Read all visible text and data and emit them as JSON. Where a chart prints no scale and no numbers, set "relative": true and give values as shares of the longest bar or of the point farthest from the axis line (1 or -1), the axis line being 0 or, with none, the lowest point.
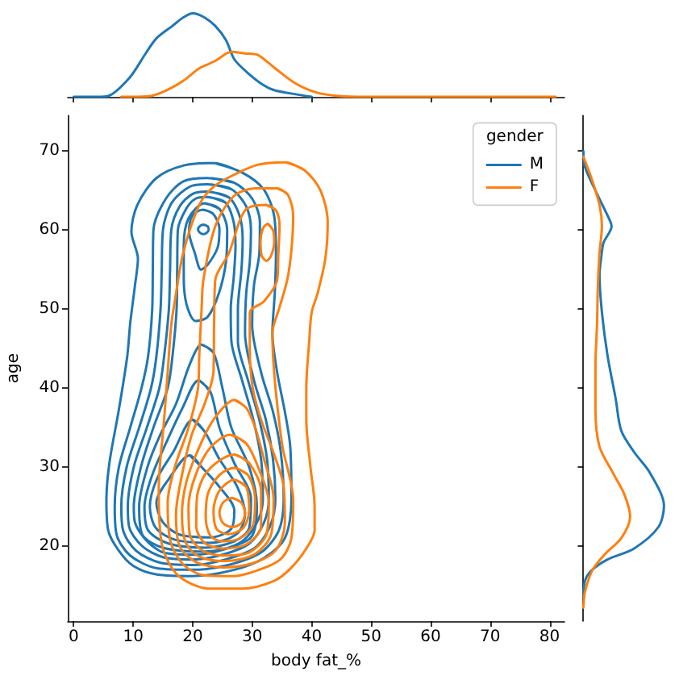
{
  "chart_data": [
    {
      "type": "line",
      "relative": true,
      "xlim": [
        -1,
        82.5
      ],
      "xticks": [
        0,
        10,
        20,
        30,
        40,
        50,
        60,
        70,
        80
      ],
      "tick_labels": false,
      "series": [
        {
          "color": "#1f77b4",
          "x": [
            0,
            4,
            5.8,
            9.4,
            12.1,
            13.9,
            16.6,
            18.4,
            20,
            22,
            23.8,
            25.6,
            27,
            29.2,
            31.9,
            33.7,
            37.3,
            40
          ],
          "values": [
            0,
            0,
            0.01,
            0.23,
            0.52,
            0.7,
            0.85,
            0.95,
            1,
            0.95,
            0.85,
            0.68,
            0.45,
            0.29,
            0.14,
            0.08,
            0.03,
            0
          ]
        },
        {
          "color": "#ff7f0e",
          "x": [
            8,
            9.4,
            13,
            15.7,
            18.4,
            21.1,
            23.8,
            26.5,
            28.8,
            31,
            33.7,
            37.3,
            40.9,
            44.5,
            49,
            60,
            70,
            81
          ],
          "values": [
            0,
            0,
            0.01,
            0.08,
            0.19,
            0.34,
            0.43,
            0.54,
            0.52,
            0.5,
            0.35,
            0.16,
            0.05,
            0.01,
            0,
            0,
            0,
            0
          ]
        }
      ]
    },
    {
      "type": "line",
      "xlabel": "body fat_%",
      "ylabel": "age",
      "legend_title": "gender",
      "legend": "top right",
      "xlim": [
        -1,
        82.5
      ],
      "ylim": [
        10.5,
        74.5
      ],
      "xticks": [
        0,
        10,
        20,
        30,
        40,
        50,
        60,
        70,
        80
      ],
      "yticks": [
        20,
        30,
        40,
        50,
        60,
        70
      ],
      "series": [
        {
          "name": "M",
          "color": "#1f77b4",
          "x": [
            23.6,
            28.3,
            31.9,
            33.7,
            34,
            33.8,
            33.4,
            34.2,
            35.5,
            36.4,
            36.6,
            35.5,
            32,
            27,
            20,
            14,
            10,
            7.5,
            5.8,
            5.5,
            6,
            7.6,
            9,
            9.5,
            10.3,
            10.8,
            9.7,
            10.7,
            13.9,
            18.5,
            23.6,
            28.3
          ],
          "values": [
            68.5,
            67.3,
            65.2,
            61.8,
            57,
            52,
            47,
            42,
            37,
            32.6,
            25.8,
            21,
            18.5,
            17,
            16.2,
            16.4,
            17.5,
            19.5,
            22,
            25.8,
            30.5,
            37.3,
            44,
            48.2,
            53,
            56.4,
            59.8,
            63.2,
            66.6,
            68.2,
            68.5,
            67.3
          ]
        },
        {
          "color": "#1f77b4",
          "x": [
            22.5,
            27,
            30,
            31.3,
            31.2,
            30.3,
            30,
            31.5,
            33.5,
            34.8,
            35.3,
            34.5,
            31.5,
            26,
            20,
            14,
            9.5,
            7.2,
            6.9,
            7.6,
            9.5,
            11.4,
            12.5,
            13.2,
            13.3,
            13.4,
            15.5,
            18.5,
            22.5,
            27
          ],
          "values": [
            66.6,
            66,
            64,
            61,
            57,
            53,
            48,
            42,
            37,
            32,
            26,
            22,
            19.2,
            17.6,
            17,
            17.2,
            18.8,
            21.5,
            25,
            30,
            35,
            40,
            44,
            50,
            55,
            60,
            64,
            66.2,
            66.6,
            66
          ]
        },
        {
          "color": "#1f77b4",
          "x": [
            22.5,
            26.5,
            29,
            29.8,
            29.6,
            29,
            28.8,
            30.3,
            32.3,
            33.5,
            33.9,
            33,
            30.5,
            25.5,
            20,
            14.5,
            10.5,
            8.3,
            8,
            8.9,
            11,
            13,
            13.9,
            14.6,
            14.8,
            15,
            16.5,
            19.5,
            22.5,
            26.5
          ],
          "values": [
            65.8,
            65.2,
            63,
            60,
            56,
            52,
            47,
            41,
            36,
            31,
            26,
            22.5,
            19.8,
            18.3,
            17.6,
            17.9,
            19.4,
            22,
            25,
            30,
            35,
            40,
            44,
            50,
            55,
            60,
            63.5,
            65.5,
            65.8,
            65.2
          ]
        },
        {
          "color": "#1f77b4",
          "x": [
            22.5,
            26,
            27.8,
            28.4,
            28.2,
            27.6,
            27.6,
            29.3,
            31.2,
            32.5,
            32.8,
            32,
            29.5,
            25,
            20,
            15,
            11.5,
            9.3,
            9.1,
            10.1,
            12.3,
            14.4,
            15.2,
            16,
            16.2,
            16.4,
            17.8,
            20,
            22.5,
            26
          ],
          "values": [
            64.9,
            64.2,
            62,
            59,
            55,
            50,
            46,
            41,
            36,
            31,
            26,
            23,
            20.3,
            18.9,
            18.3,
            18.6,
            20,
            22.5,
            25,
            30,
            35,
            40,
            44,
            50,
            55,
            60,
            63,
            64.6,
            64.9,
            64.2
          ]
        },
        {
          "color": "#1f77b4",
          "x": [
            22.5,
            25.5,
            26.9,
            27.2,
            26.9,
            26.4,
            26.5,
            28.3,
            30.2,
            31.5,
            31.8,
            31,
            28.5,
            24.5,
            20,
            15.5,
            12.5,
            10.3,
            10.1,
            11.3,
            13.4,
            15.8,
            16.6,
            17.3,
            17.4,
            17.5,
            18.9,
            20.5,
            22.5,
            25.5
          ],
          "values": [
            64.2,
            63.5,
            61,
            58,
            54,
            50,
            46,
            41,
            36,
            31,
            26,
            23.3,
            20.7,
            19.4,
            18.9,
            19.1,
            20.5,
            23,
            25,
            30,
            35,
            40,
            44,
            50,
            55,
            60,
            62.7,
            64,
            64.2,
            63.5
          ]
        },
        {
          "color": "#1f77b4",
          "x": [
            22,
            24.5,
            25.8,
            25.6,
            24.4,
            22.5,
            20.5,
            19,
            18.5,
            18.5,
            19.3,
            22,
            24.5
          ],
          "values": [
            63.4,
            62.7,
            60,
            56,
            52,
            49,
            48.5,
            50.5,
            54,
            58,
            61.5,
            63.4,
            62.7
          ]
        },
        {
          "color": "#1f77b4",
          "x": [
            21.5,
            23.5,
            25,
            26.5,
            29.5,
            30.8,
            30,
            27,
            22,
            15,
            11.5,
            11,
            12.4,
            14.5,
            17.2,
            19.5,
            21.5,
            23.5
          ],
          "values": [
            45.5,
            44.5,
            40,
            35,
            30,
            25,
            21.3,
            20,
            19.3,
            19.8,
            21.5,
            25,
            30,
            34,
            38,
            43,
            45.5,
            44.5
          ]
        },
        {
          "color": "#1f77b4",
          "x": [
            21.7,
            23.4,
            24.5,
            24.2,
            22.5,
            21.4,
            20.4,
            19.4,
            19.9,
            21.7,
            23.4
          ],
          "values": [
            62.6,
            62.1,
            60.2,
            57.8,
            55.6,
            55,
            57,
            59.8,
            61.8,
            62.6,
            62.1
          ]
        },
        {
          "color": "#1f77b4",
          "x": [
            21,
            23,
            24.5,
            27,
            29.8,
            29.5,
            27,
            22,
            16,
            12.5,
            11.9,
            13.2,
            15.5,
            18.3,
            21,
            23
          ],
          "values": [
            41,
            39.5,
            35,
            30.5,
            26,
            22.3,
            20.6,
            19.8,
            20.3,
            22,
            25,
            29,
            33,
            37.5,
            41,
            39.5
          ]
        },
        {
          "color": "#1f77b4",
          "x": [
            21.8,
            22.5,
            22.7,
            22.4,
            21.8,
            21.2,
            20.9,
            21.2,
            21.8,
            22.5
          ],
          "values": [
            60.7,
            60.5,
            60.1,
            59.7,
            59.5,
            59.7,
            60.1,
            60.5,
            60.7,
            60.5
          ]
        },
        {
          "color": "#1f77b4",
          "x": [
            20,
            22,
            24.5,
            27.5,
            28.8,
            27.5,
            23,
            17,
            13.8,
            12.8,
            14,
            16.8,
            20,
            22
          ],
          "values": [
            36,
            34.5,
            31,
            27.5,
            24,
            21.6,
            20.4,
            20.8,
            22.3,
            25,
            28.5,
            32,
            36,
            34.5
          ]
        },
        {
          "color": "#1f77b4",
          "x": [
            19.5,
            21.5,
            24.5,
            27,
            26.5,
            23,
            18,
            15,
            13.9,
            16,
            19.5,
            21.5
          ],
          "values": [
            31.5,
            30,
            27.5,
            24.5,
            22.2,
            21.1,
            21.4,
            23,
            25.5,
            28.5,
            31.5,
            30
          ]
        },
        {
          "name": "F",
          "color": "#ff7f0e",
          "x": [
            35.5,
            38.8,
            41.5,
            42.7,
            42.3,
            41,
            40,
            39.6,
            39.1,
            39.1,
            39.8,
            40.5,
            40.5,
            39.1,
            36.5,
            33.7,
            28.3,
            22.9,
            17.5,
            14.8,
            14.3,
            15.2,
            15.8,
            16.4,
            17,
            18.4,
            21.1,
            23.5,
            26.9,
            31,
            35.5,
            38.8
          ],
          "values": [
            68.6,
            67.6,
            65,
            61,
            56.4,
            52,
            49.6,
            46,
            40,
            36,
            30,
            25,
            22,
            19.7,
            17.2,
            15.6,
            14.6,
            14.6,
            16.3,
            20.3,
            27.2,
            36,
            42,
            48,
            51,
            57.1,
            63.2,
            65.5,
            67,
            68.3,
            68.6,
            67.6
          ]
        },
        {
          "color": "#ff7f0e",
          "x": [
            34.2,
            36,
            36.9,
            36.6,
            35.9,
            34.5,
            33.4,
            33.6,
            34.2,
            35.1,
            36.9,
            36.6,
            35,
            31.9,
            27,
            22,
            18.5,
            16.3,
            15.8,
            17,
            19.3,
            20.9,
            21.1,
            21.5,
            21.8,
            23.8,
            26.9,
            30.5,
            34.2,
            36
          ],
          "values": [
            65.3,
            64.5,
            61.8,
            57.5,
            53.7,
            50,
            47,
            43,
            38,
            32.6,
            25.8,
            21,
            18.5,
            17.2,
            16.2,
            16.3,
            17.6,
            20.5,
            25.5,
            30,
            35,
            40,
            44,
            50,
            53.7,
            60.5,
            64.3,
            65.3,
            65.3,
            64.5
          ]
        },
        {
          "color": "#ff7f0e",
          "x": [
            32.3,
            34,
            34.6,
            34.4,
            34.2,
            32,
            29.6,
            29.6,
            30.1,
            31.5,
            33.5,
            35.3,
            35.5,
            34,
            30,
            25,
            20.5,
            17.8,
            17.2,
            18.2,
            19.8,
            22,
            23.5,
            23.6,
            23.8,
            26.1,
            28.8,
            32.3,
            34
          ],
          "values": [
            63.2,
            62.5,
            60.5,
            57,
            53.7,
            51,
            49.6,
            45,
            40,
            36,
            32,
            27.5,
            23,
            19.5,
            17.8,
            17.3,
            18,
            20,
            24,
            29,
            34,
            38,
            42.1,
            48,
            53.7,
            57.1,
            62.5,
            63.2,
            62.5
          ]
        },
        {
          "color": "#ff7f0e",
          "x": [
            32.6,
            33.5,
            33.7,
            33.2,
            32.4,
            31.6,
            31.4,
            31.8,
            32.6,
            33.5
          ],
          "values": [
            60.8,
            60,
            58.5,
            56.8,
            56.1,
            56.8,
            58.5,
            60.2,
            60.8,
            60
          ]
        },
        {
          "color": "#ff7f0e",
          "x": [
            27,
            29,
            30.5,
            32,
            33.6,
            33.2,
            30.5,
            25.5,
            21,
            18.8,
            18.2,
            18.9,
            20.8,
            23.5,
            27,
            29
          ],
          "values": [
            38.5,
            37.5,
            35,
            31,
            26,
            21.5,
            19,
            18.1,
            18.7,
            20.5,
            24,
            28,
            32,
            36,
            38.5,
            37.5
          ]
        },
        {
          "color": "#ff7f0e",
          "x": [
            26.3,
            29,
            31,
            32.8,
            32.4,
            29.5,
            25,
            21.5,
            19.5,
            19.3,
            20.5,
            23,
            26.3,
            29
          ],
          "values": [
            34.1,
            33,
            30,
            25.5,
            21.5,
            19.2,
            18.8,
            19.5,
            21.5,
            25,
            29,
            32.5,
            34.1,
            33
          ]
        },
        {
          "color": "#ff7f0e",
          "x": [
            27,
            29.5,
            31.5,
            31.5,
            29,
            25,
            22,
            20.6,
            20.7,
            22.5,
            27,
            29.5
          ],
          "values": [
            31.6,
            30.5,
            27,
            22.5,
            20.2,
            19.7,
            20.4,
            22.5,
            26,
            29.5,
            31.6,
            30.5
          ]
        },
        {
          "color": "#ff7f0e",
          "x": [
            27,
            29.3,
            30.5,
            30.2,
            28,
            25,
            23,
            22.2,
            22.5,
            24.5,
            27,
            29.3
          ],
          "values": [
            29.9,
            29,
            26,
            22.8,
            21,
            20.6,
            21.3,
            23.5,
            26.5,
            29,
            29.9,
            29
          ]
        },
        {
          "color": "#ff7f0e",
          "x": [
            27,
            29,
            29.5,
            28.5,
            26,
            24,
            23.5,
            24.5,
            27,
            29
          ],
          "values": [
            28.4,
            27.5,
            24.5,
            22.3,
            21.5,
            22.2,
            24.5,
            27,
            28.4,
            27.5
          ]
        },
        {
          "color": "#ff7f0e",
          "x": [
            26.6,
            28.2,
            28.8,
            28.2,
            26.6,
            25.1,
            24.5,
            25.1,
            26.6,
            28.2
          ],
          "values": [
            26.1,
            25.5,
            24.2,
            22.9,
            22.4,
            22.9,
            24.2,
            25.5,
            26.1,
            25.5
          ]
        }
      ]
    },
    {
      "type": "line",
      "relative": true,
      "orientation": "horizontal",
      "ylim": [
        10.5,
        74.5
      ],
      "yticks": [
        20,
        30,
        40,
        50,
        60,
        70
      ],
      "tick_labels": false,
      "series": [
        {
          "color": "#1f77b4",
          "x": [
            70,
            68,
            64.6,
            61.2,
            60.5,
            58.4,
            56.4,
            54.4,
            49.6,
            44.1,
            38.7,
            34.6,
            31.9,
            29.2,
            25.1,
            22.4,
            19.7,
            18.3,
            16.9,
            15.6,
            13.5
          ],
          "values": [
            0,
            0.02,
            0.17,
            0.33,
            0.35,
            0.25,
            0.22,
            0.2,
            0.23,
            0.3,
            0.4,
            0.47,
            0.63,
            0.83,
            1,
            0.93,
            0.63,
            0.3,
            0.1,
            0.02,
            0
          ]
        },
        {
          "color": "#ff7f0e",
          "x": [
            69.3,
            66.6,
            63.2,
            60.5,
            57.1,
            53,
            48.2,
            42.8,
            37.3,
            32.6,
            29.2,
            26.5,
            23.7,
            21,
            19,
            16.9,
            14.2,
            12.2
          ],
          "values": [
            0,
            0.1,
            0.2,
            0.23,
            0.2,
            0.18,
            0.17,
            0.15,
            0.15,
            0.2,
            0.37,
            0.51,
            0.58,
            0.47,
            0.27,
            0.11,
            0.02,
            0
          ]
        }
      ]
    }
  ]
}
